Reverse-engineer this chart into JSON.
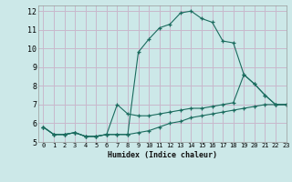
{
  "xlabel": "Humidex (Indice chaleur)",
  "xlim": [
    -0.5,
    23
  ],
  "ylim": [
    5,
    12.3
  ],
  "xticks": [
    0,
    1,
    2,
    3,
    4,
    5,
    6,
    7,
    8,
    9,
    10,
    11,
    12,
    13,
    14,
    15,
    16,
    17,
    18,
    19,
    20,
    21,
    22,
    23
  ],
  "yticks": [
    5,
    6,
    7,
    8,
    9,
    10,
    11,
    12
  ],
  "background_color": "#cce8e8",
  "grid_color": "#c8b8cc",
  "line_color": "#1a6b5e",
  "curve1_x": [
    0,
    1,
    2,
    3,
    4,
    5,
    6,
    7,
    8,
    9,
    10,
    11,
    12,
    13,
    14,
    15,
    16,
    17,
    18,
    19,
    20,
    21,
    22,
    23
  ],
  "curve1_y": [
    5.8,
    5.4,
    5.4,
    5.5,
    5.3,
    5.3,
    5.4,
    5.4,
    5.4,
    9.8,
    10.5,
    11.1,
    11.3,
    11.9,
    12.0,
    11.6,
    11.4,
    10.4,
    10.3,
    8.6,
    8.1,
    7.5,
    7.0,
    7.0
  ],
  "curve2_x": [
    0,
    1,
    2,
    3,
    4,
    5,
    6,
    7,
    8,
    9,
    10,
    11,
    12,
    13,
    14,
    15,
    16,
    17,
    18,
    19,
    20,
    21,
    22,
    23
  ],
  "curve2_y": [
    5.8,
    5.4,
    5.4,
    5.5,
    5.3,
    5.3,
    5.4,
    7.0,
    6.5,
    6.4,
    6.4,
    6.5,
    6.6,
    6.7,
    6.8,
    6.8,
    6.9,
    7.0,
    7.1,
    8.6,
    8.1,
    7.5,
    7.0,
    7.0
  ],
  "curve3_x": [
    0,
    1,
    2,
    3,
    4,
    5,
    6,
    7,
    8,
    9,
    10,
    11,
    12,
    13,
    14,
    15,
    16,
    17,
    18,
    19,
    20,
    21,
    22,
    23
  ],
  "curve3_y": [
    5.8,
    5.4,
    5.4,
    5.5,
    5.3,
    5.3,
    5.4,
    5.4,
    5.4,
    5.5,
    5.6,
    5.8,
    6.0,
    6.1,
    6.3,
    6.4,
    6.5,
    6.6,
    6.7,
    6.8,
    6.9,
    7.0,
    7.0,
    7.0
  ]
}
